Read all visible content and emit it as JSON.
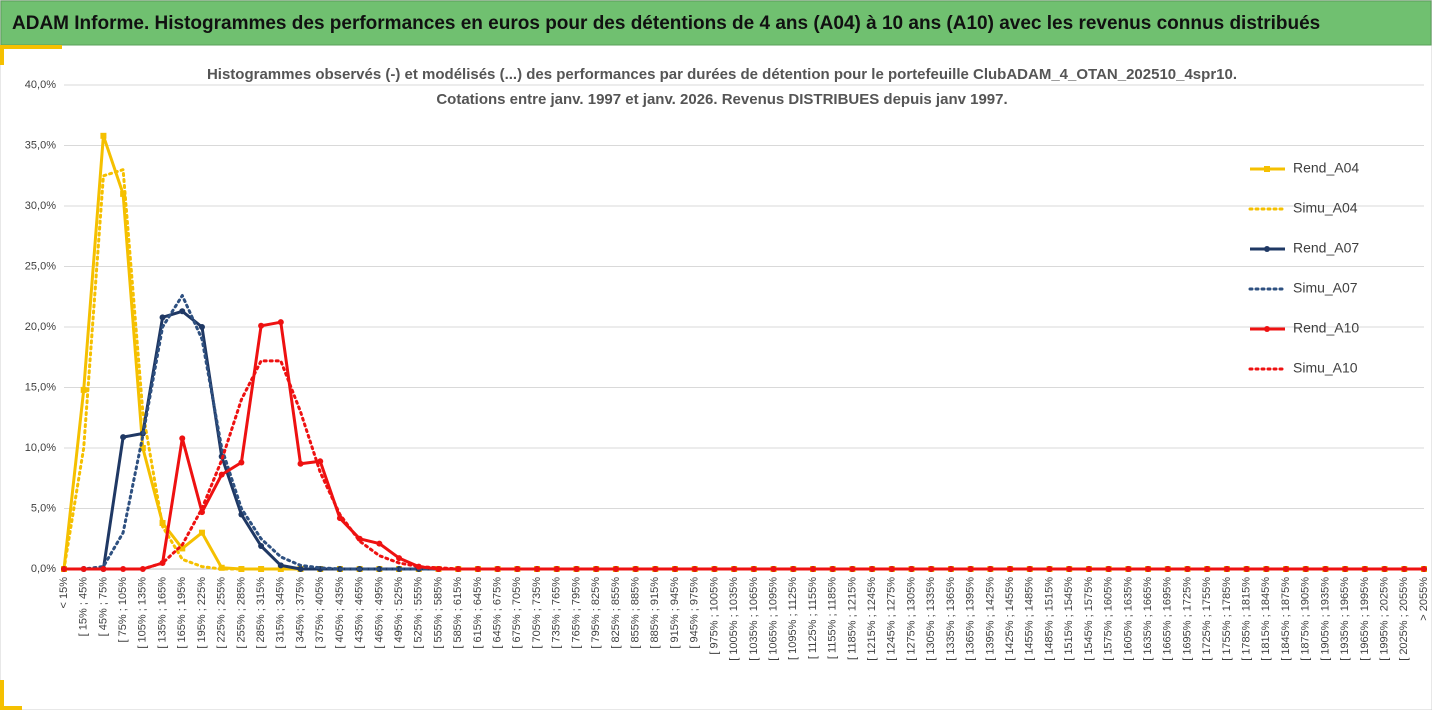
{
  "header": {
    "title": "ADAM Informe. Histogrammes des performances en euros pour des détentions de 4 ans (A04) à 10 ans (A10) avec les revenus connus distribués"
  },
  "chart_data": {
    "type": "line",
    "title": [
      "Histogrammes observés (-) et modélisés (...) des performances par durées de détention pour le portefeuille ClubADAM_4_OTAN_202510_4spr10.",
      "Cotations entre janv. 1997 et janv. 2026. Revenus DISTRIBUES depuis janv 1997."
    ],
    "categories": [
      "< 15%",
      "[ 15% ; 45%",
      "[ 45% ; 75%",
      "[ 75% ; 105%",
      "[ 105% ; 135%",
      "[ 135% ; 165%",
      "[ 165% ; 195%",
      "[ 195% ; 225%",
      "[ 225% ; 255%",
      "[ 255% ; 285%",
      "[ 285% ; 315%",
      "[ 315% ; 345%",
      "[ 345% ; 375%",
      "[ 375% ; 405%",
      "[ 405% ; 435%",
      "[ 435% ; 465%",
      "[ 465% ; 495%",
      "[ 495% ; 525%",
      "[ 525% ; 555%",
      "[ 555% ; 585%",
      "[ 585% ; 615%",
      "[ 615% ; 645%",
      "[ 645% ; 675%",
      "[ 675% ; 705%",
      "[ 705% ; 735%",
      "[ 735% ; 765%",
      "[ 765% ; 795%",
      "[ 795% ; 825%",
      "[ 825% ; 855%",
      "[ 855% ; 885%",
      "[ 885% ; 915%",
      "[ 915% ; 945%",
      "[ 945% ; 975%",
      "[ 975% ; 1005%",
      "[ 1005% ; 1035%",
      "[ 1035% ; 1065%",
      "[ 1065% ; 1095%",
      "[ 1095% ; 1125%",
      "[ 1125% ; 1155%",
      "[ 1155% ; 1185%",
      "[ 1185% ; 1215%",
      "[ 1215% ; 1245%",
      "[ 1245% ; 1275%",
      "[ 1275% ; 1305%",
      "[ 1305% ; 1335%",
      "[ 1335% ; 1365%",
      "[ 1365% ; 1395%",
      "[ 1395% ; 1425%",
      "[ 1425% ; 1455%",
      "[ 1455% ; 1485%",
      "[ 1485% ; 1515%",
      "[ 1515% ; 1545%",
      "[ 1545% ; 1575%",
      "[ 1575% ; 1605%",
      "[ 1605% ; 1635%",
      "[ 1635% ; 1665%",
      "[ 1665% ; 1695%",
      "[ 1695% ; 1725%",
      "[ 1725% ; 1755%",
      "[ 1755% ; 1785%",
      "[ 1785% ; 1815%",
      "[ 1815% ; 1845%",
      "[ 1845% ; 1875%",
      "[ 1875% ; 1905%",
      "[ 1905% ; 1935%",
      "[ 1935% ; 1965%",
      "[ 1965% ; 1995%",
      "[ 1995% ; 2025%",
      "[ 2025% ; 2055%",
      "> 2055%"
    ],
    "series": [
      {
        "name": "Rend_A04",
        "color": "#f5c000",
        "dash": "solid",
        "marker": "square",
        "values": [
          0,
          14.8,
          35.8,
          31.0,
          10.0,
          3.8,
          1.7,
          3.0,
          0.1,
          0,
          0,
          0,
          0,
          0,
          0,
          0,
          0,
          0,
          0,
          0,
          0,
          0,
          0,
          0,
          0,
          0,
          0,
          0,
          0,
          0,
          0,
          0,
          0,
          0,
          0,
          0,
          0,
          0,
          0,
          0,
          0,
          0,
          0,
          0,
          0,
          0,
          0,
          0,
          0,
          0,
          0,
          0,
          0,
          0,
          0,
          0,
          0,
          0,
          0,
          0,
          0,
          0,
          0,
          0,
          0,
          0,
          0,
          0,
          0,
          0
        ]
      },
      {
        "name": "Simu_A04",
        "color": "#f5c000",
        "dash": "dotted",
        "values": [
          0,
          10,
          32.5,
          33,
          13,
          3.5,
          0.8,
          0.2,
          0,
          0,
          0,
          0,
          0,
          0,
          0,
          0,
          0,
          0,
          0,
          0,
          0,
          0,
          0,
          0,
          0,
          0,
          0,
          0,
          0,
          0,
          0,
          0,
          0,
          0,
          0,
          0,
          0,
          0,
          0,
          0,
          0,
          0,
          0,
          0,
          0,
          0,
          0,
          0,
          0,
          0,
          0,
          0,
          0,
          0,
          0,
          0,
          0,
          0,
          0,
          0,
          0,
          0,
          0,
          0,
          0,
          0,
          0,
          0,
          0,
          0
        ]
      },
      {
        "name": "Rend_A07",
        "color": "#1f3864",
        "dash": "solid",
        "marker": "circle",
        "values": [
          0,
          0,
          0,
          10.9,
          11.2,
          20.8,
          21.3,
          20.0,
          9.3,
          4.5,
          1.9,
          0.3,
          0,
          0,
          0,
          0,
          0,
          0,
          0,
          0,
          0,
          0,
          0,
          0,
          0,
          0,
          0,
          0,
          0,
          0,
          0,
          0,
          0,
          0,
          0,
          0,
          0,
          0,
          0,
          0,
          0,
          0,
          0,
          0,
          0,
          0,
          0,
          0,
          0,
          0,
          0,
          0,
          0,
          0,
          0,
          0,
          0,
          0,
          0,
          0,
          0,
          0,
          0,
          0,
          0,
          0,
          0,
          0,
          0,
          0
        ]
      },
      {
        "name": "Simu_A07",
        "color": "#2e5080",
        "dash": "dotted",
        "values": [
          0,
          0,
          0.2,
          3,
          11,
          20,
          22.6,
          19,
          10,
          5,
          2.5,
          1,
          0.3,
          0.1,
          0,
          0,
          0,
          0,
          0,
          0,
          0,
          0,
          0,
          0,
          0,
          0,
          0,
          0,
          0,
          0,
          0,
          0,
          0,
          0,
          0,
          0,
          0,
          0,
          0,
          0,
          0,
          0,
          0,
          0,
          0,
          0,
          0,
          0,
          0,
          0,
          0,
          0,
          0,
          0,
          0,
          0,
          0,
          0,
          0,
          0,
          0,
          0,
          0,
          0,
          0,
          0,
          0,
          0,
          0,
          0
        ]
      },
      {
        "name": "Rend_A10",
        "color": "#ee1111",
        "dash": "solid",
        "marker": "circle",
        "values": [
          0,
          0,
          0,
          0,
          0,
          0.5,
          10.8,
          4.7,
          7.8,
          8.8,
          20.1,
          20.4,
          8.7,
          8.9,
          4.2,
          2.5,
          2.1,
          0.9,
          0.2,
          0,
          0,
          0,
          0,
          0,
          0,
          0,
          0,
          0,
          0,
          0,
          0,
          0,
          0,
          0,
          0,
          0,
          0,
          0,
          0,
          0,
          0,
          0,
          0,
          0,
          0,
          0,
          0,
          0,
          0,
          0,
          0,
          0,
          0,
          0,
          0,
          0,
          0,
          0,
          0,
          0,
          0,
          0,
          0,
          0,
          0,
          0,
          0,
          0,
          0,
          0
        ]
      },
      {
        "name": "Simu_A10",
        "color": "#ee1111",
        "dash": "dotted",
        "values": [
          0,
          0,
          0,
          0,
          0,
          0.5,
          2,
          5,
          9,
          14,
          17.2,
          17.2,
          13,
          8,
          4.5,
          2.3,
          1.1,
          0.5,
          0.2,
          0.1,
          0,
          0,
          0,
          0,
          0,
          0,
          0,
          0,
          0,
          0,
          0,
          0,
          0,
          0,
          0,
          0,
          0,
          0,
          0,
          0,
          0,
          0,
          0,
          0,
          0,
          0,
          0,
          0,
          0,
          0,
          0,
          0,
          0,
          0,
          0,
          0,
          0,
          0,
          0,
          0,
          0,
          0,
          0,
          0,
          0,
          0,
          0,
          0,
          0,
          0
        ]
      }
    ],
    "ylim": [
      0,
      40
    ],
    "yticks": [
      {
        "value": 0,
        "label": "0,0%"
      },
      {
        "value": 5,
        "label": "5,0%"
      },
      {
        "value": 10,
        "label": "10,0%"
      },
      {
        "value": 15,
        "label": "15,0%"
      },
      {
        "value": 20,
        "label": "20,0%"
      },
      {
        "value": 25,
        "label": "25,0%"
      },
      {
        "value": 30,
        "label": "30,0%"
      },
      {
        "value": 35,
        "label": "35,0%"
      },
      {
        "value": 40,
        "label": "40,0%"
      }
    ],
    "grid": true,
    "legend": "right"
  }
}
